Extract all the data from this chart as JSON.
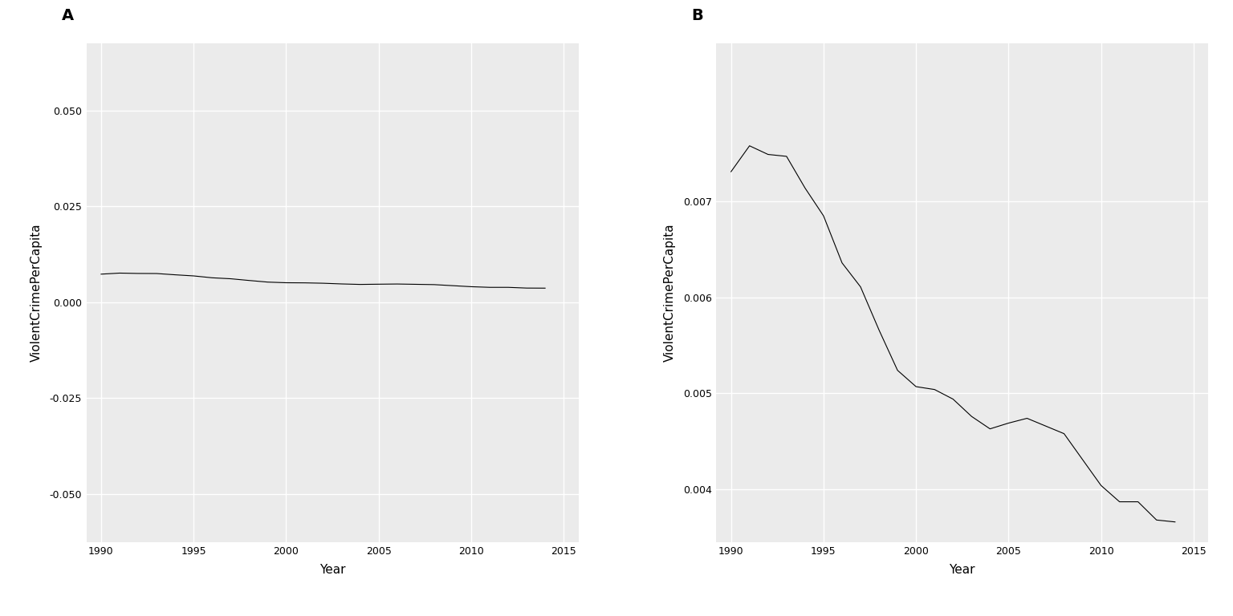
{
  "years": [
    1990,
    1991,
    1992,
    1993,
    1994,
    1995,
    1996,
    1997,
    1998,
    1999,
    2000,
    2001,
    2002,
    2003,
    2004,
    2005,
    2006,
    2007,
    2008,
    2009,
    2010,
    2011,
    2012,
    2013,
    2014
  ],
  "values": [
    0.00731,
    0.00758,
    0.00749,
    0.00747,
    0.00714,
    0.00685,
    0.00636,
    0.00611,
    0.00566,
    0.00524,
    0.00507,
    0.00504,
    0.00494,
    0.00476,
    0.00463,
    0.00469,
    0.00474,
    0.00466,
    0.00458,
    0.00431,
    0.00404,
    0.00387,
    0.00387,
    0.00368,
    0.00366
  ],
  "panel_A": {
    "ylim": [
      -0.0625,
      0.0675
    ],
    "yticks": [
      -0.05,
      -0.025,
      0.0,
      0.025,
      0.05
    ],
    "ytick_labels": [
      "-0.050",
      "-0.025",
      "0.000",
      "0.025",
      "0.050"
    ],
    "ylabel": "ViolentCrimePerCapita",
    "xlabel": "Year",
    "label": "A"
  },
  "panel_B": {
    "ylim": [
      0.00345,
      0.00865
    ],
    "yticks": [
      0.004,
      0.005,
      0.006,
      0.007
    ],
    "ytick_labels": [
      "0.004",
      "0.005",
      "0.006",
      "0.007"
    ],
    "ylabel": "ViolentCrimePerCapita",
    "xlabel": "Year",
    "label": "B"
  },
  "line_color": "#000000",
  "line_width": 0.8,
  "bg_color": "#EBEBEB",
  "grid_color": "#FFFFFF",
  "xticks": [
    1990,
    1995,
    2000,
    2005,
    2010,
    2015
  ],
  "xtick_labels": [
    "1990",
    "1995",
    "2000",
    "2005",
    "2010",
    "2015"
  ],
  "xlim": [
    1989.2,
    2015.8
  ],
  "panel_label_fontsize": 14,
  "axis_label_fontsize": 11,
  "tick_fontsize": 9,
  "bg_figure": "#FFFFFF"
}
